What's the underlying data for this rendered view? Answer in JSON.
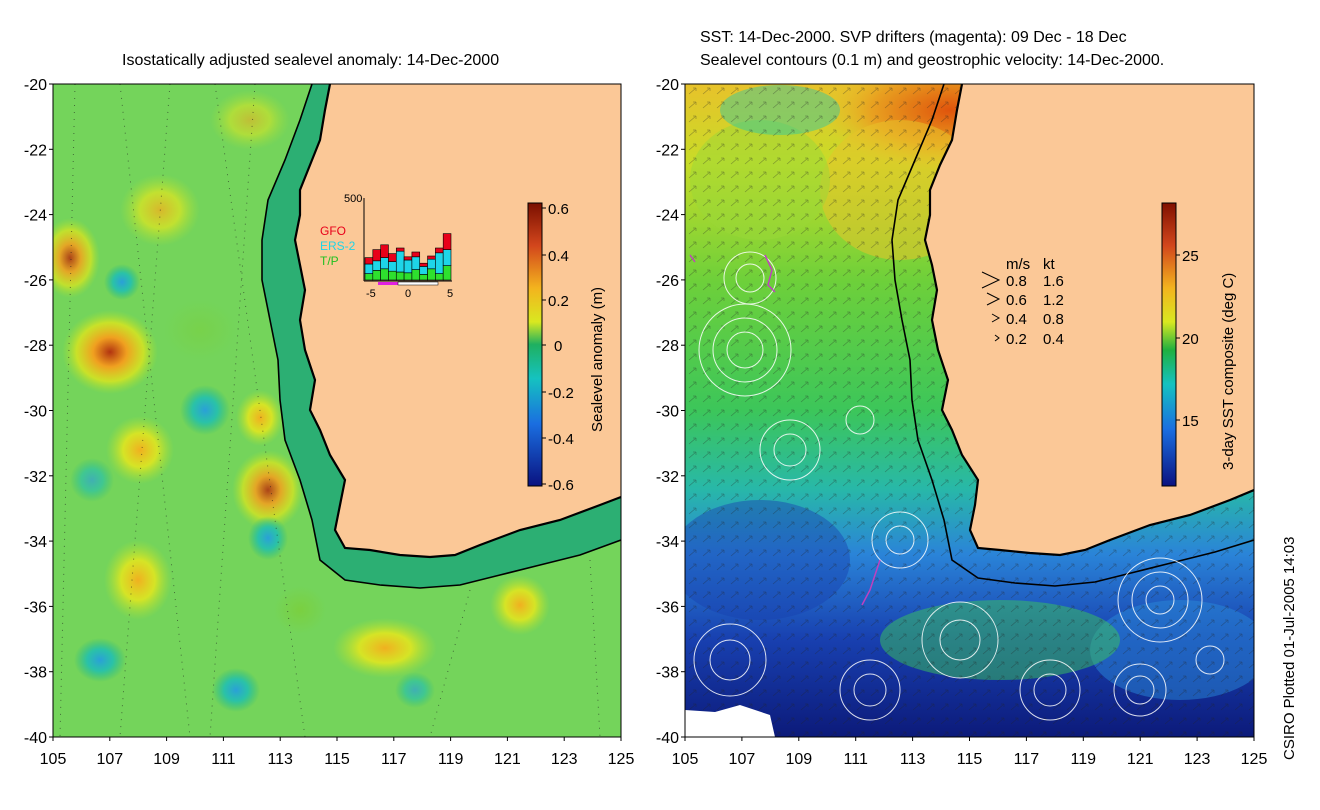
{
  "left_panel": {
    "title": "Isostatically adjusted sealevel anomaly: 14-Dec-2000",
    "colorbar": {
      "label": "Sealevel anomaly (m)",
      "ticks": [
        "0.6",
        "0.4",
        "0.2",
        "0",
        "-0.2",
        "-0.4",
        "-0.6"
      ]
    },
    "histogram": {
      "ymax_label": "500",
      "x_ticks": [
        "-5",
        "0",
        "5"
      ],
      "legend": [
        {
          "name": "GFO",
          "color": "#e8001a"
        },
        {
          "name": "ERS-2",
          "color": "#1ed5e8"
        },
        {
          "name": "T/P",
          "color": "#2ee02e"
        }
      ],
      "bins": [
        {
          "tp": 40,
          "ers": 60,
          "gfo": 40
        },
        {
          "tp": 60,
          "ers": 60,
          "gfo": 70
        },
        {
          "tp": 70,
          "ers": 70,
          "gfo": 80
        },
        {
          "tp": 55,
          "ers": 60,
          "gfo": 50
        },
        {
          "tp": 50,
          "ers": 130,
          "gfo": 20
        },
        {
          "tp": 45,
          "ers": 80,
          "gfo": 20
        },
        {
          "tp": 65,
          "ers": 80,
          "gfo": 30
        },
        {
          "tp": 35,
          "ers": 50,
          "gfo": 20
        },
        {
          "tp": 70,
          "ers": 60,
          "gfo": 20
        },
        {
          "tp": 40,
          "ers": 130,
          "gfo": 30
        },
        {
          "tp": 90,
          "ers": 100,
          "gfo": 100
        }
      ]
    }
  },
  "right_panel": {
    "title_line1": "SST: 14-Dec-2000. SVP drifters (magenta): 09 Dec - 18 Dec",
    "title_line2": "Sealevel contours (0.1 m) and geostrophic velocity: 14-Dec-2000.",
    "colorbar": {
      "label": "3-day SST composite (deg C)",
      "ticks": [
        "25",
        "20",
        "15"
      ]
    },
    "velocity_legend": {
      "header_ms": "m/s",
      "header_kt": "kt",
      "rows": [
        {
          "ms": "0.8",
          "kt": "1.6"
        },
        {
          "ms": "0.6",
          "kt": "1.2"
        },
        {
          "ms": "0.4",
          "kt": "0.8"
        },
        {
          "ms": "0.2",
          "kt": "0.4"
        }
      ]
    }
  },
  "y_ticks": [
    "-20",
    "-22",
    "-24",
    "-26",
    "-28",
    "-30",
    "-32",
    "-34",
    "-36",
    "-38",
    "-40"
  ],
  "x_ticks": [
    "105",
    "107",
    "109",
    "111",
    "113",
    "115",
    "117",
    "119",
    "121",
    "123",
    "125"
  ],
  "credit": "CSIRO Plotted 01-Jul-2005 14:03",
  "colors": {
    "land": "#fbc897",
    "ocean_mid": "#21b97a",
    "drifter": "#c040c0"
  }
}
